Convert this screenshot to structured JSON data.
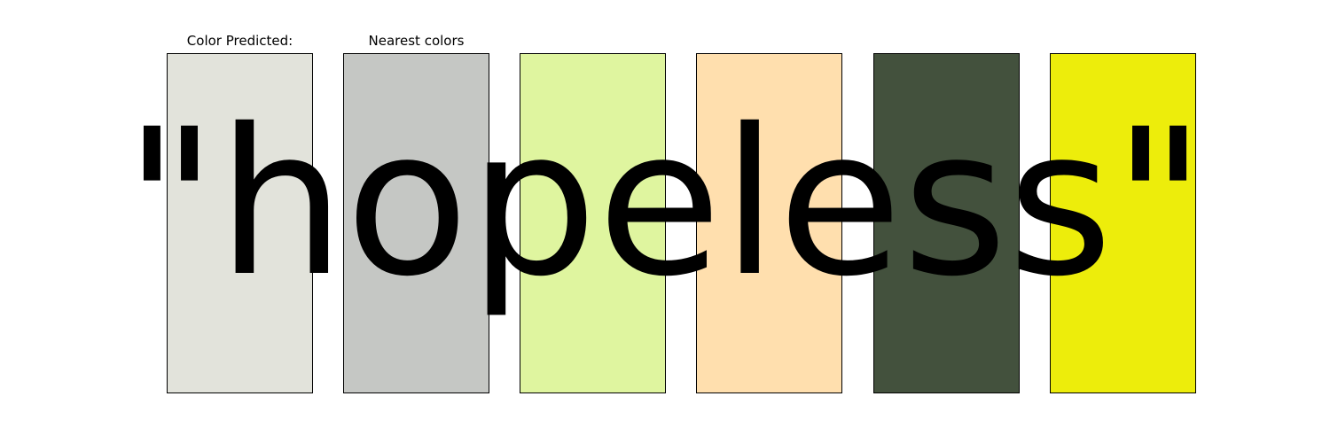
{
  "labels": {
    "predicted": "Color Predicted:",
    "nearest": "Nearest colors"
  },
  "word": "\"hopeless\"",
  "swatches": [
    {
      "role": "predicted",
      "color": "#e2e3db"
    },
    {
      "role": "nearest",
      "color": "#c5c7c4"
    },
    {
      "role": "nearest",
      "color": "#dff59f"
    },
    {
      "role": "nearest",
      "color": "#ffdfae"
    },
    {
      "role": "nearest",
      "color": "#43513d"
    },
    {
      "role": "nearest",
      "color": "#eded0b"
    }
  ]
}
